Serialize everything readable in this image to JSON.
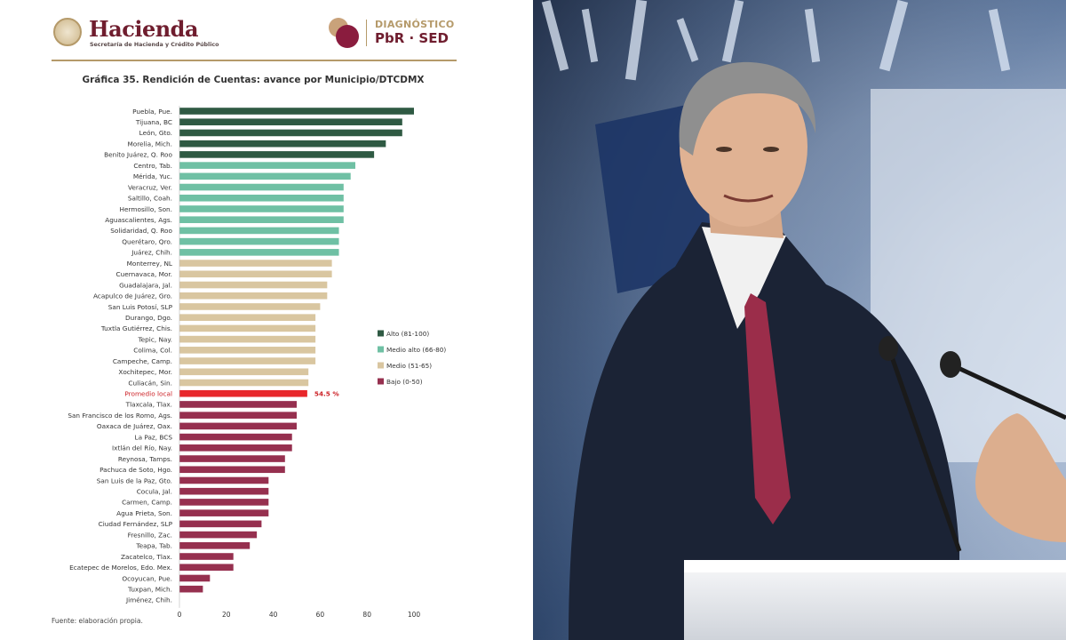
{
  "header": {
    "brand_title": "Hacienda",
    "brand_subtitle": "Secretaría de Hacienda y Crédito Público",
    "badge_line1": "DIAGNÓSTICO",
    "badge_line2": "PbR · SED"
  },
  "footnote": "Fuente: elaboración propia.",
  "colors": {
    "alto": "#2f5a43",
    "medio_alto": "#6fc0a4",
    "medio": "#d9c6a0",
    "bajo": "#96304f",
    "promedio": "#e8262a"
  },
  "chart_data": {
    "type": "bar",
    "orientation": "horizontal",
    "title": "Gráfica 35. Rendición de Cuentas: avance por Municipio/DTCDMX",
    "xlim": [
      0,
      100
    ],
    "xticks": [
      0,
      20,
      40,
      60,
      80,
      100
    ],
    "grid": false,
    "legend_position": "right",
    "legend": [
      {
        "key": "alto",
        "label": "Alto (81-100)"
      },
      {
        "key": "medio_alto",
        "label": "Medio alto (66-80)"
      },
      {
        "key": "medio",
        "label": "Medio (51-65)"
      },
      {
        "key": "bajo",
        "label": "Bajo (0-50)"
      }
    ],
    "highlight_label": "54.5 %",
    "bars": [
      {
        "label": "Puebla, Pue.",
        "value": 100,
        "group": "alto"
      },
      {
        "label": "Tijuana, BC",
        "value": 95,
        "group": "alto"
      },
      {
        "label": "León, Gto.",
        "value": 95,
        "group": "alto"
      },
      {
        "label": "Morelia, Mich.",
        "value": 88,
        "group": "alto"
      },
      {
        "label": "Benito Juárez, Q. Roo",
        "value": 83,
        "group": "alto"
      },
      {
        "label": "Centro, Tab.",
        "value": 75,
        "group": "medio_alto"
      },
      {
        "label": "Mérida, Yuc.",
        "value": 73,
        "group": "medio_alto"
      },
      {
        "label": "Veracruz, Ver.",
        "value": 70,
        "group": "medio_alto"
      },
      {
        "label": "Saltillo, Coah.",
        "value": 70,
        "group": "medio_alto"
      },
      {
        "label": "Hermosillo, Son.",
        "value": 70,
        "group": "medio_alto"
      },
      {
        "label": "Aguascalientes, Ags.",
        "value": 70,
        "group": "medio_alto"
      },
      {
        "label": "Solidaridad, Q. Roo",
        "value": 68,
        "group": "medio_alto"
      },
      {
        "label": "Querétaro, Qro.",
        "value": 68,
        "group": "medio_alto"
      },
      {
        "label": "Juárez, Chih.",
        "value": 68,
        "group": "medio_alto"
      },
      {
        "label": "Monterrey, NL",
        "value": 65,
        "group": "medio"
      },
      {
        "label": "Cuernavaca, Mor.",
        "value": 65,
        "group": "medio"
      },
      {
        "label": "Guadalajara, Jal.",
        "value": 63,
        "group": "medio"
      },
      {
        "label": "Acapulco de Juárez, Gro.",
        "value": 63,
        "group": "medio"
      },
      {
        "label": "San Luis Potosí, SLP",
        "value": 60,
        "group": "medio"
      },
      {
        "label": "Durango, Dgo.",
        "value": 58,
        "group": "medio"
      },
      {
        "label": "Tuxtla Gutiérrez, Chis.",
        "value": 58,
        "group": "medio"
      },
      {
        "label": "Tepic, Nay.",
        "value": 58,
        "group": "medio"
      },
      {
        "label": "Colima, Col.",
        "value": 58,
        "group": "medio"
      },
      {
        "label": "Campeche, Camp.",
        "value": 58,
        "group": "medio"
      },
      {
        "label": "Xochitepec, Mor.",
        "value": 55,
        "group": "medio"
      },
      {
        "label": "Culiacán, Sin.",
        "value": 55,
        "group": "medio"
      },
      {
        "label": "Promedio local",
        "value": 54.5,
        "group": "promedio"
      },
      {
        "label": "Tlaxcala, Tlax.",
        "value": 50,
        "group": "bajo"
      },
      {
        "label": "San Francisco de los Romo, Ags.",
        "value": 50,
        "group": "bajo"
      },
      {
        "label": "Oaxaca de Juárez, Oax.",
        "value": 50,
        "group": "bajo"
      },
      {
        "label": "La Paz, BCS",
        "value": 48,
        "group": "bajo"
      },
      {
        "label": "Ixtlán del Río, Nay.",
        "value": 48,
        "group": "bajo"
      },
      {
        "label": "Reynosa, Tamps.",
        "value": 45,
        "group": "bajo"
      },
      {
        "label": "Pachuca de Soto, Hgo.",
        "value": 45,
        "group": "bajo"
      },
      {
        "label": "San Luis de la Paz, Gto.",
        "value": 38,
        "group": "bajo"
      },
      {
        "label": "Cocula, Jal.",
        "value": 38,
        "group": "bajo"
      },
      {
        "label": "Carmen, Camp.",
        "value": 38,
        "group": "bajo"
      },
      {
        "label": "Agua Prieta, Son.",
        "value": 38,
        "group": "bajo"
      },
      {
        "label": "Ciudad Fernández, SLP",
        "value": 35,
        "group": "bajo"
      },
      {
        "label": "Fresnillo, Zac.",
        "value": 33,
        "group": "bajo"
      },
      {
        "label": "Teapa, Tab.",
        "value": 30,
        "group": "bajo"
      },
      {
        "label": "Zacatelco, Tlax.",
        "value": 23,
        "group": "bajo"
      },
      {
        "label": "Ecatepec de Morelos, Edo. Mex.",
        "value": 23,
        "group": "bajo"
      },
      {
        "label": "Ocoyucan, Pue.",
        "value": 13,
        "group": "bajo"
      },
      {
        "label": "Tuxpan, Mich.",
        "value": 10,
        "group": "bajo"
      },
      {
        "label": "Jiménez, Chih.",
        "value": 0,
        "group": "bajo"
      }
    ]
  }
}
